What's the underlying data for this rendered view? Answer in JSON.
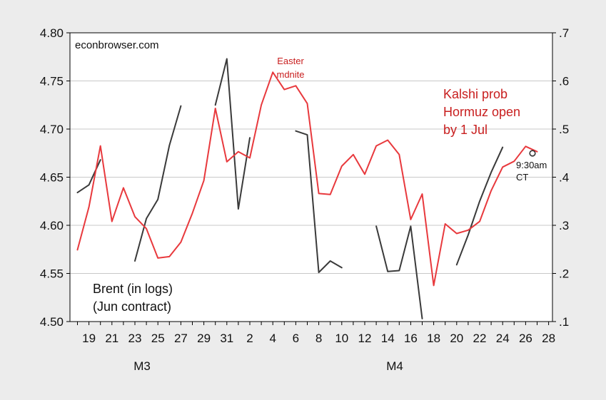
{
  "chart_data": {
    "type": "line",
    "watermark": "econbrowser.com",
    "x_tick_labels": [
      "19",
      "21",
      "23",
      "25",
      "27",
      "29",
      "31",
      "2",
      "4",
      "6",
      "8",
      "10",
      "12",
      "14",
      "16",
      "18",
      "20",
      "22",
      "24",
      "26",
      "28"
    ],
    "x_group_labels": [
      "M3",
      "M4"
    ],
    "y_left": {
      "ticks": [
        "4.50",
        "4.55",
        "4.60",
        "4.65",
        "4.70",
        "4.75",
        "4.80"
      ],
      "ylim": [
        4.5,
        4.8
      ]
    },
    "y_right": {
      "ticks": [
        ".1",
        ".2",
        ".3",
        ".4",
        ".5",
        ".6",
        ".7"
      ],
      "ylim": [
        0.1,
        0.7
      ]
    },
    "grid": true,
    "colors": {
      "brent": "#3a3a3a",
      "kalshi": "#e8393d",
      "annotation_red": "#c81e1e",
      "background": "#ececec",
      "plot_bg": "#ffffff"
    },
    "annotations": {
      "easter": [
        "Easter",
        "mdnite"
      ],
      "kalshi_label": [
        "Kalshi prob",
        "Hormuz open",
        "by 1 Jul"
      ],
      "brent_label": [
        "Brent (in logs)",
        "(Jun contract)"
      ],
      "time_label": [
        "9:30am",
        "CT"
      ]
    },
    "series": [
      {
        "name": "Brent (in logs) (Jun contract)",
        "axis": "left",
        "x": [
          "M3-18",
          "M3-19",
          "M3-20",
          null,
          "M3-23",
          "M3-24",
          "M3-25",
          "M3-26",
          "M3-27",
          null,
          "M3-30",
          "M3-31",
          "M4-1",
          "M4-2",
          null,
          "M4-6",
          "M4-7",
          "M4-8",
          "M4-9",
          "M4-10",
          null,
          "M4-13",
          "M4-14",
          "M4-15",
          "M4-16",
          "M4-17",
          null,
          "M4-20",
          "M4-21",
          "M4-22",
          "M4-23",
          "M4-24"
        ],
        "values": [
          4.634,
          4.642,
          4.668,
          null,
          4.563,
          4.607,
          4.627,
          4.683,
          4.724,
          null,
          4.725,
          4.773,
          4.617,
          4.691,
          null,
          4.698,
          4.694,
          4.551,
          4.563,
          4.556,
          null,
          4.599,
          4.552,
          4.553,
          4.599,
          4.503,
          null,
          4.559,
          4.59,
          4.625,
          4.655,
          4.681
        ]
      },
      {
        "name": "Kalshi prob Hormuz open by 1 Jul",
        "axis": "right",
        "x": [
          "M3-18",
          "M3-19",
          "M3-20",
          "M3-21",
          "M3-22",
          "M3-23",
          "M3-24",
          "M3-25",
          "M3-26",
          "M3-27",
          "M3-28",
          "M3-29",
          "M3-30",
          "M3-31",
          "M4-1",
          "M4-2",
          "M4-3",
          "M4-4",
          "M4-5",
          "M4-6",
          "M4-7",
          "M4-8",
          "M4-9",
          "M4-10",
          "M4-11",
          "M4-12",
          "M4-13",
          "M4-14",
          "M4-15",
          "M4-16",
          "M4-17",
          "M4-18",
          "M4-19",
          "M4-20",
          "M4-21",
          "M4-22",
          "M4-23",
          "M4-24",
          "M4-25",
          "M4-26",
          "M4-27"
        ],
        "values": [
          0.249,
          0.338,
          0.465,
          0.308,
          0.378,
          0.318,
          0.293,
          0.232,
          0.235,
          0.265,
          0.325,
          0.393,
          0.543,
          0.432,
          0.453,
          0.44,
          0.55,
          0.618,
          0.582,
          0.59,
          0.553,
          0.366,
          0.364,
          0.423,
          0.447,
          0.406,
          0.465,
          0.477,
          0.447,
          0.312,
          0.365,
          0.175,
          0.303,
          0.283,
          0.29,
          0.308,
          0.372,
          0.421,
          0.433,
          0.464,
          0.453
        ]
      }
    ]
  }
}
